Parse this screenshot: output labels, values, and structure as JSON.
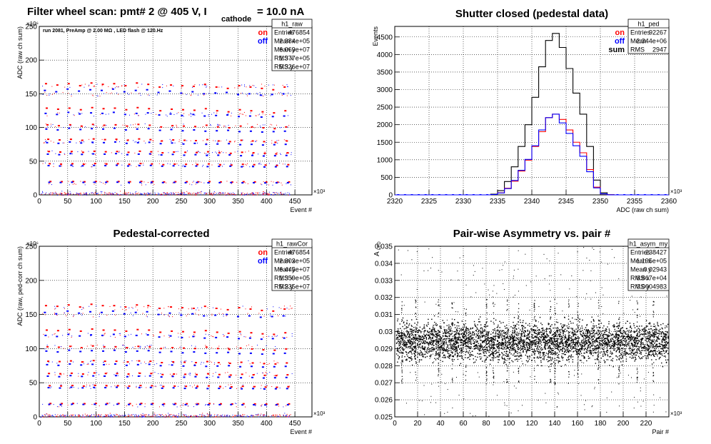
{
  "chart_data": [
    {
      "type": "scatter",
      "title": "Filter wheel scan: pmt#   2 @   405 V, I",
      "title_sub": "cathode",
      "title_tail": "= 10.0 nA",
      "annotation": "run 2081, PreAmp @ 2.00 MΩ , LED flash @  120.Hz",
      "xlabel": "Event #",
      "ylabel": "ADC (raw ch sum)",
      "x_exp": "×10³",
      "y_exp": "×10⁶",
      "xlim": [
        0,
        480
      ],
      "ylim": [
        0,
        250
      ],
      "xticks": [
        0,
        50,
        100,
        150,
        200,
        250,
        300,
        350,
        400,
        450
      ],
      "yticks": [
        0,
        50,
        100,
        150,
        200,
        250
      ],
      "hlines": [
        3,
        18,
        45,
        63,
        80,
        103,
        120,
        150,
        162
      ],
      "legend": [
        {
          "label": "on",
          "color": "#ff0000"
        },
        {
          "label": "off",
          "color": "#0000ff"
        }
      ],
      "stats": {
        "name": "h1_raw",
        "rows": [
          [
            "Entries",
            "476854"
          ],
          [
            "Mean x",
            "2.384e+05"
          ],
          [
            "Mean y",
            "6.069e+07"
          ],
          [
            "RMS x",
            "1.377e+05"
          ],
          [
            "RMS y",
            "5.326e+07"
          ]
        ]
      },
      "series": [
        {
          "name": "on",
          "color": "#ff0000",
          "x": [
            10,
            30,
            50,
            70,
            90,
            110,
            130,
            150,
            170,
            190,
            210,
            230,
            250,
            270,
            290,
            310,
            330,
            350,
            370,
            390,
            410,
            430
          ],
          "y": [
            165,
            163,
            165,
            162,
            166,
            164,
            165,
            162,
            166,
            164,
            160,
            163,
            162,
            161,
            164,
            160,
            158,
            162,
            160,
            158,
            156,
            160
          ]
        },
        {
          "name": "off",
          "color": "#0000ff",
          "x": [
            8,
            28,
            48,
            68,
            88,
            108,
            128,
            148,
            168,
            188,
            208,
            228,
            248,
            268,
            288,
            308,
            328,
            348,
            368,
            388,
            408,
            428
          ],
          "y": [
            155,
            153,
            157,
            154,
            156,
            155,
            157,
            153,
            155,
            156,
            152,
            154,
            151,
            153,
            150,
            151,
            152,
            149,
            150,
            148,
            149,
            150
          ]
        }
      ]
    },
    {
      "type": "line",
      "title": "Shutter closed (pedestal data)",
      "xlabel": "ADC (raw ch sum)",
      "ylabel": "Events",
      "x_exp": "×10³",
      "xlim": [
        2320,
        2360
      ],
      "ylim": [
        0,
        4800
      ],
      "xticks": [
        2320,
        2325,
        2330,
        2335,
        2340,
        2345,
        2350,
        2355,
        2360
      ],
      "yticks": [
        0,
        500,
        1000,
        1500,
        2000,
        2500,
        3000,
        3500,
        4000,
        4500
      ],
      "legend": [
        {
          "label": "on",
          "color": "#ff0000"
        },
        {
          "label": "off",
          "color": "#0000ff"
        },
        {
          "label": "sum",
          "color": "#000000"
        }
      ],
      "stats": {
        "name": "h1_ped",
        "rows": [
          [
            "Entries",
            "92267"
          ],
          [
            "Mean",
            "2.344e+06"
          ],
          [
            "RMS",
            "2947"
          ]
        ]
      },
      "bins_x": [
        2334.5,
        2335.5,
        2336.5,
        2337.5,
        2338.5,
        2339.5,
        2340.5,
        2341.5,
        2342.5,
        2343.5,
        2344.5,
        2345.5,
        2346.5,
        2347.5,
        2348.5,
        2349.5,
        2350.5,
        2351.5
      ],
      "series": [
        {
          "name": "sum",
          "color": "#000000",
          "y": [
            20,
            120,
            380,
            800,
            1380,
            2000,
            2780,
            3650,
            4400,
            4600,
            4200,
            3600,
            2900,
            2300,
            1380,
            420,
            60,
            5
          ]
        },
        {
          "name": "on",
          "color": "#ff0000",
          "y": [
            10,
            60,
            190,
            390,
            680,
            990,
            1380,
            1800,
            2200,
            2300,
            2150,
            1850,
            1500,
            1200,
            720,
            220,
            30,
            3
          ]
        },
        {
          "name": "off",
          "color": "#0000ff",
          "y": [
            10,
            55,
            180,
            410,
            700,
            1010,
            1400,
            1850,
            2200,
            2300,
            2050,
            1750,
            1400,
            1100,
            660,
            200,
            30,
            2
          ]
        }
      ]
    },
    {
      "type": "scatter",
      "title": "Pedestal-corrected",
      "xlabel": "Event #",
      "ylabel": "ADC (raw, ped-corr ch sum)",
      "x_exp": "×10³",
      "y_exp": "×10⁶",
      "xlim": [
        0,
        480
      ],
      "ylim": [
        0,
        250
      ],
      "xticks": [
        0,
        50,
        100,
        150,
        200,
        250,
        300,
        350,
        400,
        450
      ],
      "yticks": [
        0,
        50,
        100,
        150,
        200,
        250
      ],
      "hlines": [
        3,
        18,
        45,
        63,
        80,
        103,
        120,
        150,
        160
      ],
      "legend": [
        {
          "label": "on",
          "color": "#ff0000"
        },
        {
          "label": "off",
          "color": "#0000ff"
        }
      ],
      "stats": {
        "name": "h1_rawCor",
        "rows": [
          [
            "Entries",
            "476854"
          ],
          [
            "Mean x",
            "2.303e+05"
          ],
          [
            "Mean y",
            "6.445e+07"
          ],
          [
            "RMS x",
            "1.359e+05"
          ],
          [
            "RMS y",
            "5.235e+07"
          ]
        ]
      },
      "series": [
        {
          "name": "on",
          "color": "#ff0000",
          "x": [
            10,
            30,
            50,
            70,
            90,
            110,
            130,
            150,
            170,
            190,
            210,
            230,
            250,
            270,
            290,
            310,
            330,
            350,
            370,
            390,
            410,
            430
          ],
          "y": [
            163,
            162,
            164,
            161,
            165,
            163,
            163,
            161,
            164,
            163,
            159,
            161,
            160,
            159,
            162,
            159,
            157,
            160,
            158,
            156,
            155,
            158
          ]
        },
        {
          "name": "off",
          "color": "#0000ff",
          "x": [
            8,
            28,
            48,
            68,
            88,
            108,
            128,
            148,
            168,
            188,
            208,
            228,
            248,
            268,
            288,
            308,
            328,
            348,
            368,
            388,
            408,
            428
          ],
          "y": [
            153,
            151,
            155,
            152,
            154,
            153,
            155,
            151,
            153,
            154,
            150,
            152,
            149,
            151,
            148,
            149,
            150,
            147,
            148,
            146,
            147,
            148
          ]
        }
      ]
    },
    {
      "type": "scatter",
      "title": "Pair-wise Asymmetry vs. pair #",
      "xlabel": "Pair #",
      "ylabel": "A",
      "ylabel_sub": "LED",
      "x_exp": "×10³",
      "xlim": [
        0,
        240
      ],
      "ylim": [
        0.025,
        0.035
      ],
      "xticks": [
        0,
        20,
        40,
        60,
        80,
        100,
        120,
        140,
        160,
        180,
        200,
        220
      ],
      "yticks": [
        0.025,
        0.026,
        0.027,
        0.028,
        0.029,
        0.03,
        0.031,
        0.032,
        0.033,
        0.034,
        0.035
      ],
      "band": {
        "center": 0.02943,
        "half_width": 0.0009
      },
      "spikes_x": [
        6,
        18,
        38,
        50,
        62,
        80,
        86,
        98,
        108,
        122,
        136,
        140,
        152,
        160,
        178,
        196,
        212,
        226
      ],
      "stats": {
        "name": "h1_asym_my",
        "rows": [
          [
            "Entries",
            "238427"
          ],
          [
            "Mean x",
            "1.195e+05"
          ],
          [
            "Mean y",
            "0.02943"
          ],
          [
            "RMS x",
            "6.867e+04"
          ],
          [
            "RMS y",
            "0.0004983"
          ]
        ]
      }
    }
  ]
}
